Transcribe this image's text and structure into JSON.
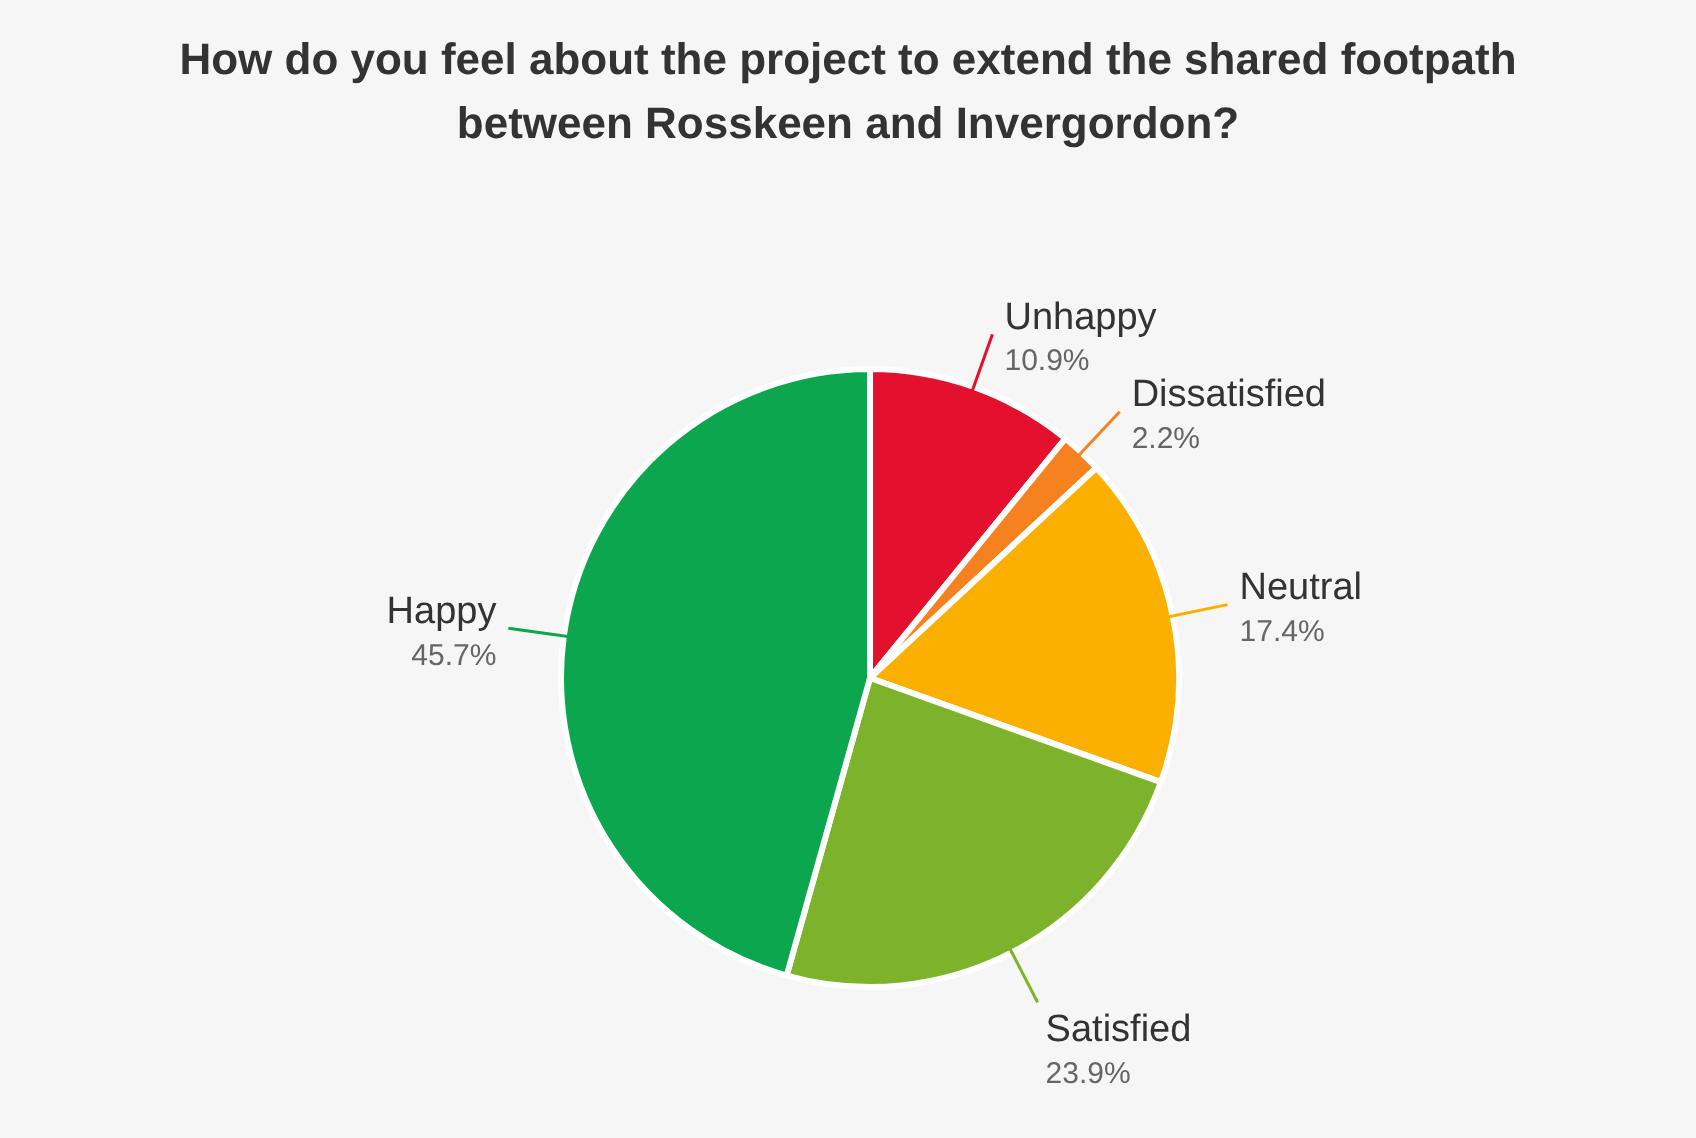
{
  "chart_data": {
    "type": "pie",
    "title": "How do you feel about the project to extend the shared footpath between Rosskeen and Invergordon?",
    "categories": [
      "Unhappy",
      "Dissatisfied",
      "Neutral",
      "Satisfied",
      "Happy"
    ],
    "values": [
      10.9,
      2.2,
      17.4,
      23.9,
      45.7
    ],
    "value_labels": [
      "10.9%",
      "2.2%",
      "17.4%",
      "23.9%",
      "45.7%"
    ],
    "colors": [
      "#e3112e",
      "#f5821f",
      "#fbb000",
      "#7cb32b",
      "#0ba64e"
    ]
  }
}
